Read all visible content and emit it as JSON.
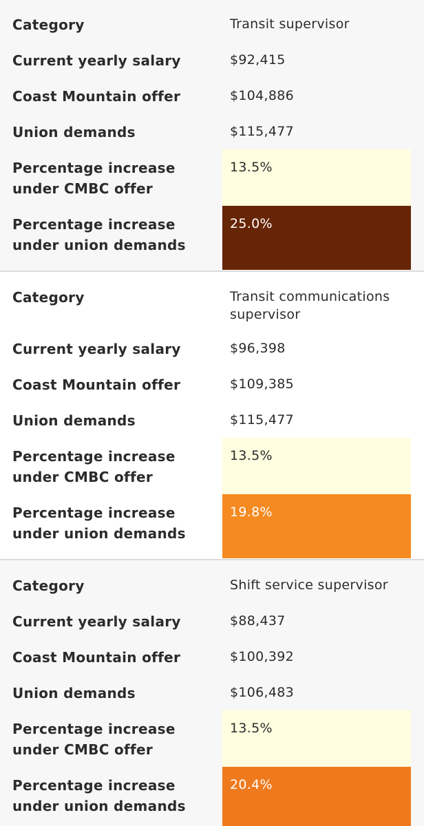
{
  "colors": {
    "low_increase_fill": "#fffee0",
    "increase_25_fill": "#662506",
    "increase_19_8_fill": "#f58a22",
    "increase_20_4_fill": "#ef7a1e",
    "light_text": "#ffffff",
    "dark_text": "#2b2b2b"
  },
  "cards": [
    {
      "category_label": "Category",
      "category_value": "Transit supervisor",
      "salary_label": "Current yearly salary",
      "salary_value": "$92,415",
      "offer_label": "Coast Mountain offer",
      "offer_value": "$104,886",
      "union_label": "Union demands",
      "union_value": "$115,477",
      "pct_cmbc_label": "Percentage increase under CMBC offer",
      "pct_cmbc_value": "13.5%",
      "pct_union_label": "Percentage increase under union demands",
      "pct_union_value": "25.0%"
    },
    {
      "category_label": "Category",
      "category_value": "Transit communications supervisor",
      "salary_label": "Current yearly salary",
      "salary_value": "$96,398",
      "offer_label": "Coast Mountain offer",
      "offer_value": "$109,385",
      "union_label": "Union demands",
      "union_value": "$115,477",
      "pct_cmbc_label": "Percentage increase under CMBC offer",
      "pct_cmbc_value": "13.5%",
      "pct_union_label": "Percentage increase under union demands",
      "pct_union_value": "19.8%"
    },
    {
      "category_label": "Category",
      "category_value": "Shift service supervisor",
      "salary_label": "Current yearly salary",
      "salary_value": "$88,437",
      "offer_label": "Coast Mountain offer",
      "offer_value": "$100,392",
      "union_label": "Union demands",
      "union_value": "$106,483",
      "pct_cmbc_label": "Percentage increase under CMBC offer",
      "pct_cmbc_value": "13.5%",
      "pct_union_label": "Percentage increase under union demands",
      "pct_union_value": "20.4%"
    }
  ]
}
